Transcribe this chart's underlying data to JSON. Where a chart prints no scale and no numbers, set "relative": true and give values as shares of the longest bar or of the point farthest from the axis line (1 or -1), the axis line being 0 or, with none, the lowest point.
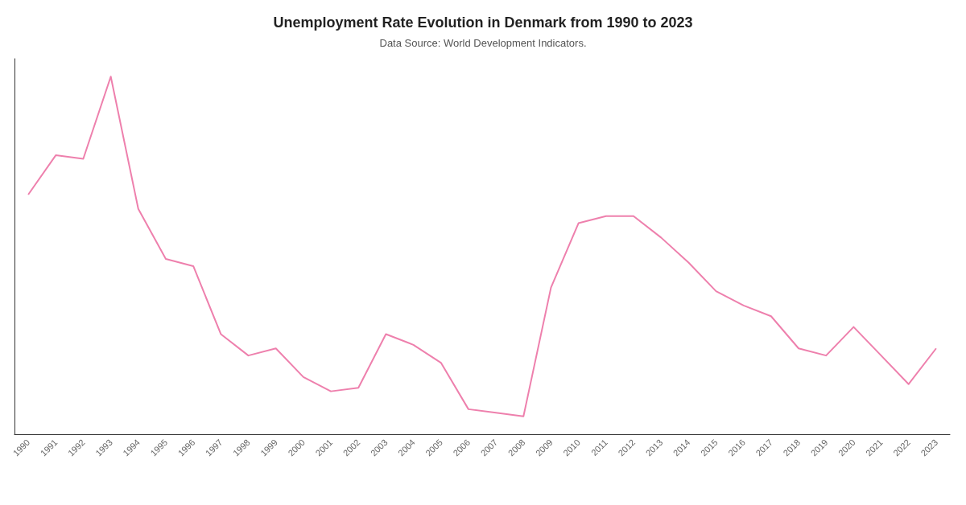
{
  "chart_data": {
    "type": "line",
    "title": "Unemployment Rate Evolution in Denmark from 1990 to 2023",
    "subtitle": "Data Source: World Development Indicators.",
    "relative": true,
    "marker": "none",
    "line_style": "solid",
    "categories": [
      "1990",
      "1991",
      "1992",
      "1993",
      "1994",
      "1995",
      "1996",
      "1997",
      "1998",
      "1999",
      "2000",
      "2001",
      "2002",
      "2003",
      "2004",
      "2005",
      "2006",
      "2007",
      "2008",
      "2009",
      "2010",
      "2011",
      "2012",
      "2013",
      "2014",
      "2015",
      "2016",
      "2017",
      "2018",
      "2019",
      "2020",
      "2021",
      "2022",
      "2023"
    ],
    "series": [
      {
        "color": "#ee80ad",
        "values": [
          0.67,
          0.78,
          0.77,
          1,
          0.63,
          0.49,
          0.47,
          0.28,
          0.22,
          0.24,
          0.16,
          0.12,
          0.13,
          0.28,
          0.25,
          0.2,
          0.07,
          0.06,
          0.05,
          0.41,
          0.59,
          0.61,
          0.61,
          0.55,
          0.48,
          0.4,
          0.36,
          0.33,
          0.24,
          0.22,
          0.3,
          0.22,
          0.14,
          0.24
        ]
      }
    ]
  }
}
